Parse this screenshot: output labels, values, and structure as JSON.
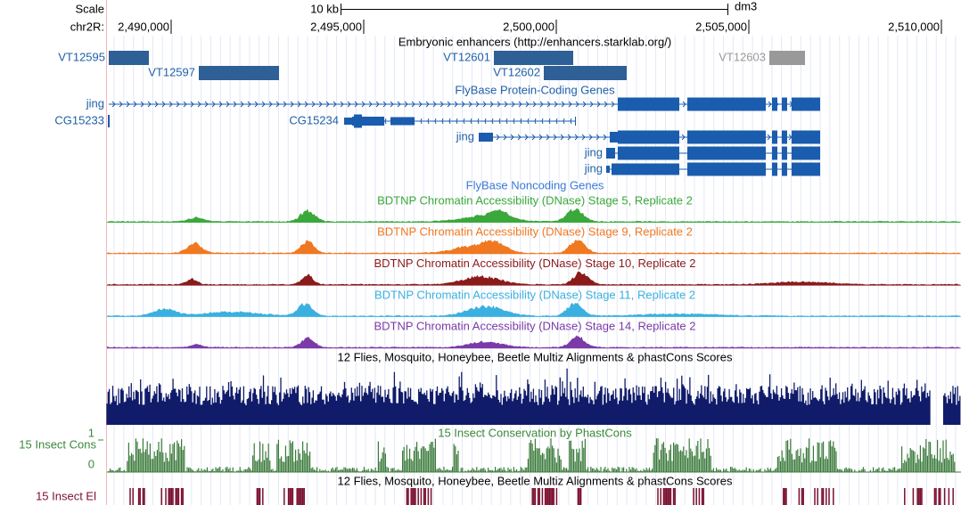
{
  "ruler": {
    "scale_label": "Scale",
    "scale_size": "10 kb",
    "assembly": "dm3",
    "chrom_label": "chr2R:",
    "ticks": [
      {
        "value": 2490000,
        "label": "2,490,000"
      },
      {
        "value": 2495000,
        "label": "2,495,000"
      },
      {
        "value": 2500000,
        "label": "2,500,000"
      },
      {
        "value": 2505000,
        "label": "2,505,000"
      },
      {
        "value": 2510000,
        "label": "2,510,000"
      }
    ]
  },
  "tracks": {
    "enhancers": {
      "title": "Embryonic enhancers (http://enhancers.starklab.org/)",
      "items": [
        "VT12595",
        "VT12597",
        "VT12601",
        "VT12602",
        "VT12603"
      ]
    },
    "protein_genes": {
      "title": "FlyBase Protein-Coding Genes",
      "items": [
        "jing",
        "CG15233",
        "CG15234",
        "jing",
        "jing",
        "jing"
      ]
    },
    "noncoding_genes": {
      "title": "FlyBase Noncoding Genes"
    },
    "dnase": [
      "BDTNP Chromatin Accessibility (DNase) Stage 5, Replicate 2",
      "BDTNP Chromatin Accessibility (DNase) Stage 9, Replicate 2",
      "BDTNP Chromatin Accessibility (DNase) Stage 10, Replicate 2",
      "BDTNP Chromatin Accessibility (DNase) Stage 11, Replicate 2",
      "BDTNP Chromatin Accessibility (DNase) Stage 14, Replicate 2"
    ],
    "multiz": {
      "title": "12 Flies, Mosquito, Honeybee, Beetle Multiz Alignments & phastCons Scores"
    },
    "cons": {
      "title": "15 Insect Conservation by PhastCons",
      "side_label": "15 Insect Cons",
      "max_label": 1,
      "min_label": 0
    },
    "elements": {
      "title": "12 Flies, Mosquito, Honeybee, Beetle Multiz Alignments & phastCons Scores",
      "side_label": "15 Insect El"
    }
  }
}
